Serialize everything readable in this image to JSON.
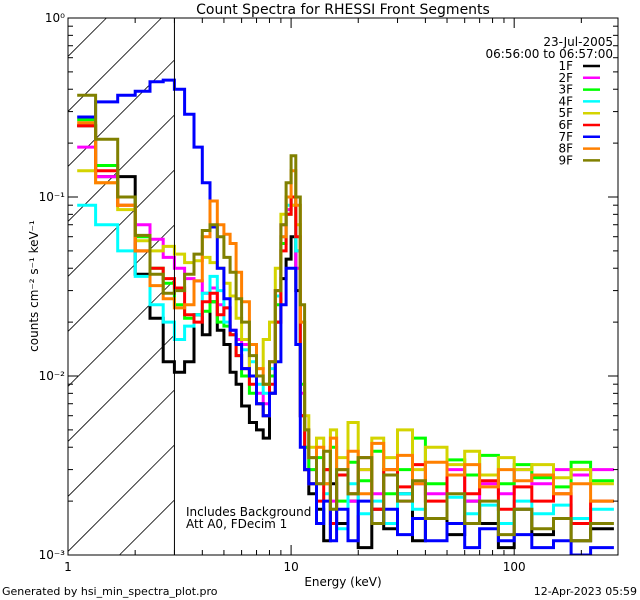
{
  "chart_data": {
    "type": "line",
    "title": "Count Spectra for RHESSI Front Segments",
    "xlabel": "Energy (keV)",
    "ylabel": "counts cm⁻² s⁻¹ keV⁻¹",
    "xscale": "log",
    "yscale": "log",
    "xlim": [
      1,
      292
    ],
    "ylim": [
      0.001,
      1
    ],
    "x_ticks": [
      {
        "value": 1,
        "label": "1"
      },
      {
        "value": 10,
        "label": "10"
      },
      {
        "value": 100,
        "label": "100"
      }
    ],
    "y_ticks": [
      {
        "value": 1,
        "label": "10⁰"
      },
      {
        "value": 0.1,
        "label": "10⁻¹"
      },
      {
        "value": 0.01,
        "label": "10⁻²"
      },
      {
        "value": 0.001,
        "label": "10⁻³"
      }
    ],
    "date": "23-Jul-2005",
    "time_range": "06:56:00 to 06:57:00",
    "hatched_region": [
      1,
      3
    ],
    "annotations": [
      "Includes Background",
      "Att A0, FDecim 1"
    ],
    "legend_position": "top-right",
    "energy_edges": [
      1.1,
      1.33,
      1.67,
      2.0,
      2.33,
      2.67,
      3.0,
      3.33,
      3.67,
      4.0,
      4.33,
      4.67,
      5.0,
      5.33,
      5.67,
      6.0,
      6.5,
      7.0,
      7.5,
      8.0,
      8.5,
      9.0,
      9.5,
      10.0,
      10.5,
      11.0,
      11.5,
      12.0,
      13,
      14,
      15,
      16,
      18,
      20,
      23,
      26,
      30,
      35,
      40,
      50,
      60,
      70,
      85,
      100,
      120,
      150,
      180,
      220,
      280
    ],
    "series": [
      {
        "name": "1F",
        "color": "#000000",
        "values": [
          0.25,
          0.13,
          0.13,
          0.037,
          0.021,
          0.012,
          0.0105,
          0.012,
          0.022,
          0.017,
          0.026,
          0.018,
          0.015,
          0.0105,
          0.009,
          0.0068,
          0.0055,
          0.005,
          0.0045,
          0.008,
          0.02,
          0.035,
          0.045,
          0.06,
          0.03,
          0.006,
          0.003,
          0.0022,
          0.0018,
          0.0012,
          0.0025,
          0.0015,
          0.002,
          0.0011,
          0.0018,
          0.0014,
          0.0022,
          0.0012,
          0.0016,
          0.0013,
          0.002,
          0.0015,
          0.0011,
          0.0018,
          0.0013,
          0.0016,
          0.0012,
          0.0014
        ]
      },
      {
        "name": "2F",
        "color": "#ff00ff",
        "values": [
          0.19,
          0.13,
          0.1,
          0.07,
          0.058,
          0.046,
          0.04,
          0.035,
          0.034,
          0.029,
          0.031,
          0.025,
          0.024,
          0.018,
          0.016,
          0.015,
          0.01,
          0.008,
          0.007,
          0.012,
          0.03,
          0.07,
          0.085,
          0.09,
          0.04,
          0.008,
          0.004,
          0.003,
          0.0025,
          0.003,
          0.002,
          0.0028,
          0.002,
          0.003,
          0.0022,
          0.0028,
          0.002,
          0.0025,
          0.0022,
          0.003,
          0.002,
          0.0025,
          0.0022,
          0.003,
          0.0025,
          0.003,
          0.0028,
          0.003
        ]
      },
      {
        "name": "3F",
        "color": "#00ff00",
        "values": [
          0.27,
          0.15,
          0.1,
          0.06,
          0.04,
          0.033,
          0.025,
          0.021,
          0.022,
          0.023,
          0.026,
          0.02,
          0.019,
          0.017,
          0.013,
          0.01,
          0.008,
          0.007,
          0.006,
          0.01,
          0.025,
          0.055,
          0.08,
          0.1,
          0.05,
          0.009,
          0.004,
          0.003,
          0.0035,
          0.0025,
          0.004,
          0.002,
          0.0033,
          0.0026,
          0.0038,
          0.0022,
          0.003,
          0.0045,
          0.0025,
          0.0034,
          0.0028,
          0.0036,
          0.0025,
          0.0032,
          0.0027,
          0.0024,
          0.0033,
          0.0026
        ]
      },
      {
        "name": "4F",
        "color": "#00ffff",
        "values": [
          0.09,
          0.07,
          0.05,
          0.036,
          0.025,
          0.02,
          0.016,
          0.019,
          0.022,
          0.029,
          0.036,
          0.03,
          0.02,
          0.017,
          0.015,
          0.014,
          0.012,
          0.009,
          0.008,
          0.011,
          0.028,
          0.06,
          0.09,
          0.1,
          0.05,
          0.006,
          0.003,
          0.0025,
          0.0015,
          0.0022,
          0.0018,
          0.0014,
          0.0025,
          0.0017,
          0.002,
          0.0015,
          0.0022,
          0.0018,
          0.0016,
          0.0021,
          0.0017,
          0.0019,
          0.0015,
          0.002,
          0.0017,
          0.0019,
          0.0016,
          0.0018
        ]
      },
      {
        "name": "5F",
        "color": "#d4d400",
        "values": [
          0.14,
          0.12,
          0.085,
          0.057,
          0.05,
          0.053,
          0.048,
          0.043,
          0.044,
          0.046,
          0.043,
          0.04,
          0.033,
          0.028,
          0.021,
          0.016,
          0.01,
          0.011,
          0.016,
          0.02,
          0.04,
          0.08,
          0.1,
          0.09,
          0.07,
          0.02,
          0.006,
          0.004,
          0.0045,
          0.003,
          0.005,
          0.0035,
          0.0055,
          0.003,
          0.0045,
          0.0035,
          0.005,
          0.003,
          0.004,
          0.0032,
          0.0038,
          0.0028,
          0.0035,
          0.003,
          0.0032,
          0.0027,
          0.003,
          0.0025
        ]
      },
      {
        "name": "6F",
        "color": "#ff0000",
        "values": [
          0.25,
          0.14,
          0.09,
          0.05,
          0.04,
          0.035,
          0.031,
          0.022,
          0.02,
          0.026,
          0.029,
          0.022,
          0.024,
          0.017,
          0.013,
          0.011,
          0.009,
          0.007,
          0.006,
          0.009,
          0.02,
          0.05,
          0.08,
          0.1,
          0.06,
          0.006,
          0.003,
          0.0025,
          0.002,
          0.003,
          0.0015,
          0.0028,
          0.0022,
          0.0035,
          0.0018,
          0.003,
          0.0024,
          0.0032,
          0.002,
          0.0028,
          0.0022,
          0.0026,
          0.0018,
          0.0024,
          0.002,
          0.0022,
          0.0015,
          0.002
        ]
      },
      {
        "name": "7F",
        "color": "#0000ff",
        "values": [
          0.28,
          0.34,
          0.37,
          0.39,
          0.44,
          0.45,
          0.4,
          0.29,
          0.19,
          0.12,
          0.068,
          0.04,
          0.027,
          0.018,
          0.015,
          0.011,
          0.01,
          0.007,
          0.006,
          0.008,
          0.012,
          0.025,
          0.04,
          0.04,
          0.015,
          0.004,
          0.003,
          0.0025,
          0.0015,
          0.002,
          0.0012,
          0.0018,
          0.0012,
          0.002,
          0.0015,
          0.0018,
          0.0013,
          0.0016,
          0.0012,
          0.0015,
          0.0011,
          0.0014,
          0.0012,
          0.0013,
          0.0011,
          0.0012,
          0.001,
          0.0011
        ]
      },
      {
        "name": "8F",
        "color": "#ff8000",
        "values": [
          0.26,
          0.12,
          0.09,
          0.05,
          0.032,
          0.027,
          0.024,
          0.025,
          0.034,
          0.06,
          0.095,
          0.07,
          0.062,
          0.055,
          0.038,
          0.026,
          0.015,
          0.011,
          0.009,
          0.012,
          0.03,
          0.06,
          0.1,
          0.14,
          0.09,
          0.02,
          0.005,
          0.0035,
          0.004,
          0.0025,
          0.0045,
          0.003,
          0.0038,
          0.0022,
          0.0042,
          0.003,
          0.0036,
          0.0025,
          0.0033,
          0.0028,
          0.0032,
          0.0024,
          0.003,
          0.0026,
          0.0028,
          0.0022,
          0.0025,
          0.002
        ]
      },
      {
        "name": "9F",
        "color": "#808000",
        "values": [
          0.37,
          0.21,
          0.1,
          0.061,
          0.037,
          0.029,
          0.03,
          0.037,
          0.048,
          0.065,
          0.07,
          0.06,
          0.046,
          0.038,
          0.027,
          0.02,
          0.013,
          0.01,
          0.009,
          0.012,
          0.03,
          0.07,
          0.12,
          0.17,
          0.1,
          0.025,
          0.005,
          0.0035,
          0.0025,
          0.0038,
          0.0018,
          0.003,
          0.0022,
          0.0035,
          0.0015,
          0.0028,
          0.002,
          0.0026,
          0.0016,
          0.0022,
          0.0015,
          0.002,
          0.0013,
          0.0018,
          0.0014,
          0.0016,
          0.0012,
          0.0015
        ]
      }
    ]
  },
  "footer": {
    "generated_by": "Generated by hsi_min_spectra_plot.pro",
    "timestamp": "12-Apr-2023 05:59"
  }
}
